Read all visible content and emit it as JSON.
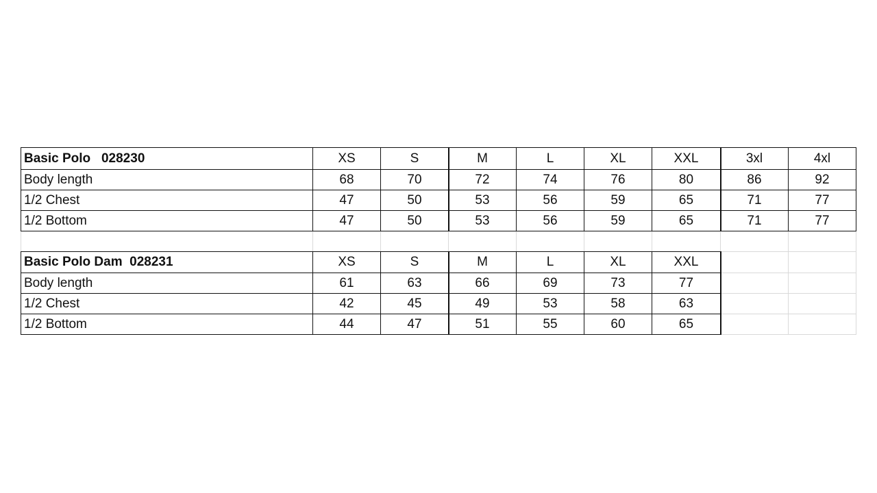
{
  "tables": [
    {
      "title": "Basic Polo   028230",
      "sizes": [
        "XS",
        "S",
        "M",
        "L",
        "XL",
        "XXL",
        "3xl",
        "4xl"
      ],
      "rows": [
        {
          "label": "Body length",
          "values": [
            "68",
            "70",
            "72",
            "74",
            "76",
            "80",
            "86",
            "92"
          ]
        },
        {
          "label": "1/2 Chest",
          "values": [
            "47",
            "50",
            "53",
            "56",
            "59",
            "65",
            "71",
            "77"
          ]
        },
        {
          "label": "1/2 Bottom",
          "values": [
            "47",
            "50",
            "53",
            "56",
            "59",
            "65",
            "71",
            "77"
          ]
        }
      ]
    },
    {
      "title": "Basic Polo Dam  028231",
      "sizes": [
        "XS",
        "S",
        "M",
        "L",
        "XL",
        "XXL"
      ],
      "rows": [
        {
          "label": "Body length",
          "values": [
            "61",
            "63",
            "66",
            "69",
            "73",
            "77"
          ]
        },
        {
          "label": "1/2 Chest",
          "values": [
            "42",
            "45",
            "49",
            "53",
            "58",
            "63"
          ]
        },
        {
          "label": "1/2 Bottom",
          "values": [
            "44",
            "47",
            "51",
            "55",
            "60",
            "65"
          ]
        }
      ]
    }
  ]
}
